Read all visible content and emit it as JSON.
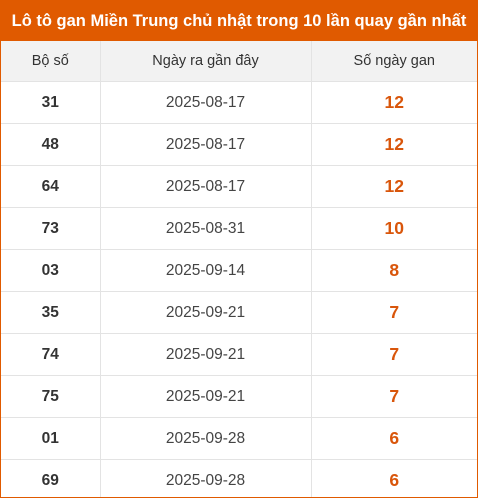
{
  "title": "Lô tô gan Miền Trung chủ nhật trong 10 lần quay gần nhất",
  "columns": [
    "Bộ số",
    "Ngày ra gần đây",
    "Số ngày gan"
  ],
  "rows": [
    {
      "number": "31",
      "date": "2025-08-17",
      "days": "12"
    },
    {
      "number": "48",
      "date": "2025-08-17",
      "days": "12"
    },
    {
      "number": "64",
      "date": "2025-08-17",
      "days": "12"
    },
    {
      "number": "73",
      "date": "2025-08-31",
      "days": "10"
    },
    {
      "number": "03",
      "date": "2025-09-14",
      "days": "8"
    },
    {
      "number": "35",
      "date": "2025-09-21",
      "days": "7"
    },
    {
      "number": "74",
      "date": "2025-09-21",
      "days": "7"
    },
    {
      "number": "75",
      "date": "2025-09-21",
      "days": "7"
    },
    {
      "number": "01",
      "date": "2025-09-28",
      "days": "6"
    },
    {
      "number": "69",
      "date": "2025-09-28",
      "days": "6"
    }
  ],
  "colors": {
    "accent": "#e05a00",
    "days_text": "#d9560b",
    "header_bg": "#f2f2f2"
  }
}
